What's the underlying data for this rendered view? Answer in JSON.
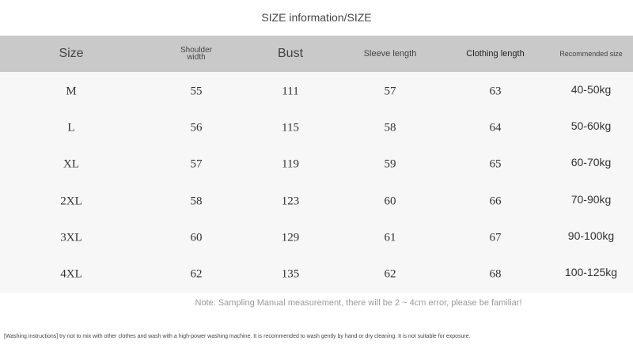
{
  "title": "SIZE information/SIZE",
  "table": {
    "header": [
      "Size",
      "Shoulder width",
      "Bust",
      "Sleeve length",
      "Clothing length",
      "Recommended size"
    ],
    "rows": [
      [
        "M",
        "55",
        "111",
        "57",
        "63",
        "40-50kg"
      ],
      [
        "L",
        "56",
        "115",
        "58",
        "64",
        "50-60kg"
      ],
      [
        "XL",
        "57",
        "119",
        "59",
        "65",
        "60-70kg"
      ],
      [
        "2XL",
        "58",
        "123",
        "60",
        "66",
        "70-90kg"
      ],
      [
        "3XL",
        "60",
        "129",
        "61",
        "67",
        "90-100kg"
      ],
      [
        "4XL",
        "62",
        "135",
        "62",
        "68",
        "100-125kg"
      ]
    ]
  },
  "note": "Note: Sampling Manual measurement, there will be 2 ~ 4cm error, please be familiar!",
  "washing_instructions": "[Washing instructions] try not to mix with other clothes and wash with a high-power washing machine. It is recommended to wash gently by hand or dry cleaning. It is not suitable for exposure."
}
